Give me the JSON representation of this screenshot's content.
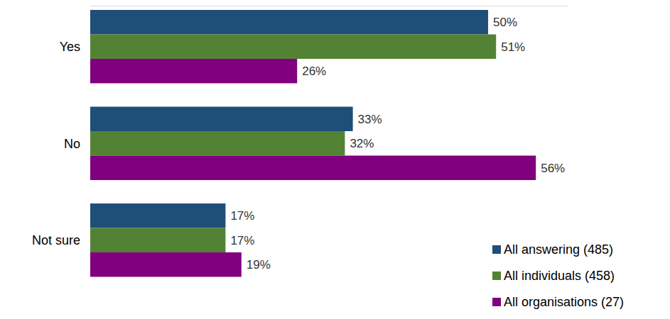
{
  "chart_data": {
    "type": "bar",
    "orientation": "horizontal",
    "categories": [
      "Yes",
      "No",
      "Not sure"
    ],
    "series": [
      {
        "name": "All answering (485)",
        "color": "#1f4e79",
        "values": [
          50,
          33,
          17
        ],
        "value_labels": [
          "50%",
          "33%",
          "17%"
        ]
      },
      {
        "name": "All individuals (458)",
        "color": "#548235",
        "values": [
          51,
          32,
          17
        ],
        "value_labels": [
          "51%",
          "32%",
          "17%"
        ]
      },
      {
        "name": "All organisations (27)",
        "color": "#800080",
        "values": [
          26,
          56,
          19
        ],
        "value_labels": [
          "26%",
          "56%",
          "19%"
        ]
      }
    ],
    "xlim": [
      0,
      60
    ],
    "tick_labels": false,
    "grid": false,
    "data_labels": true,
    "legend": "lower right"
  }
}
